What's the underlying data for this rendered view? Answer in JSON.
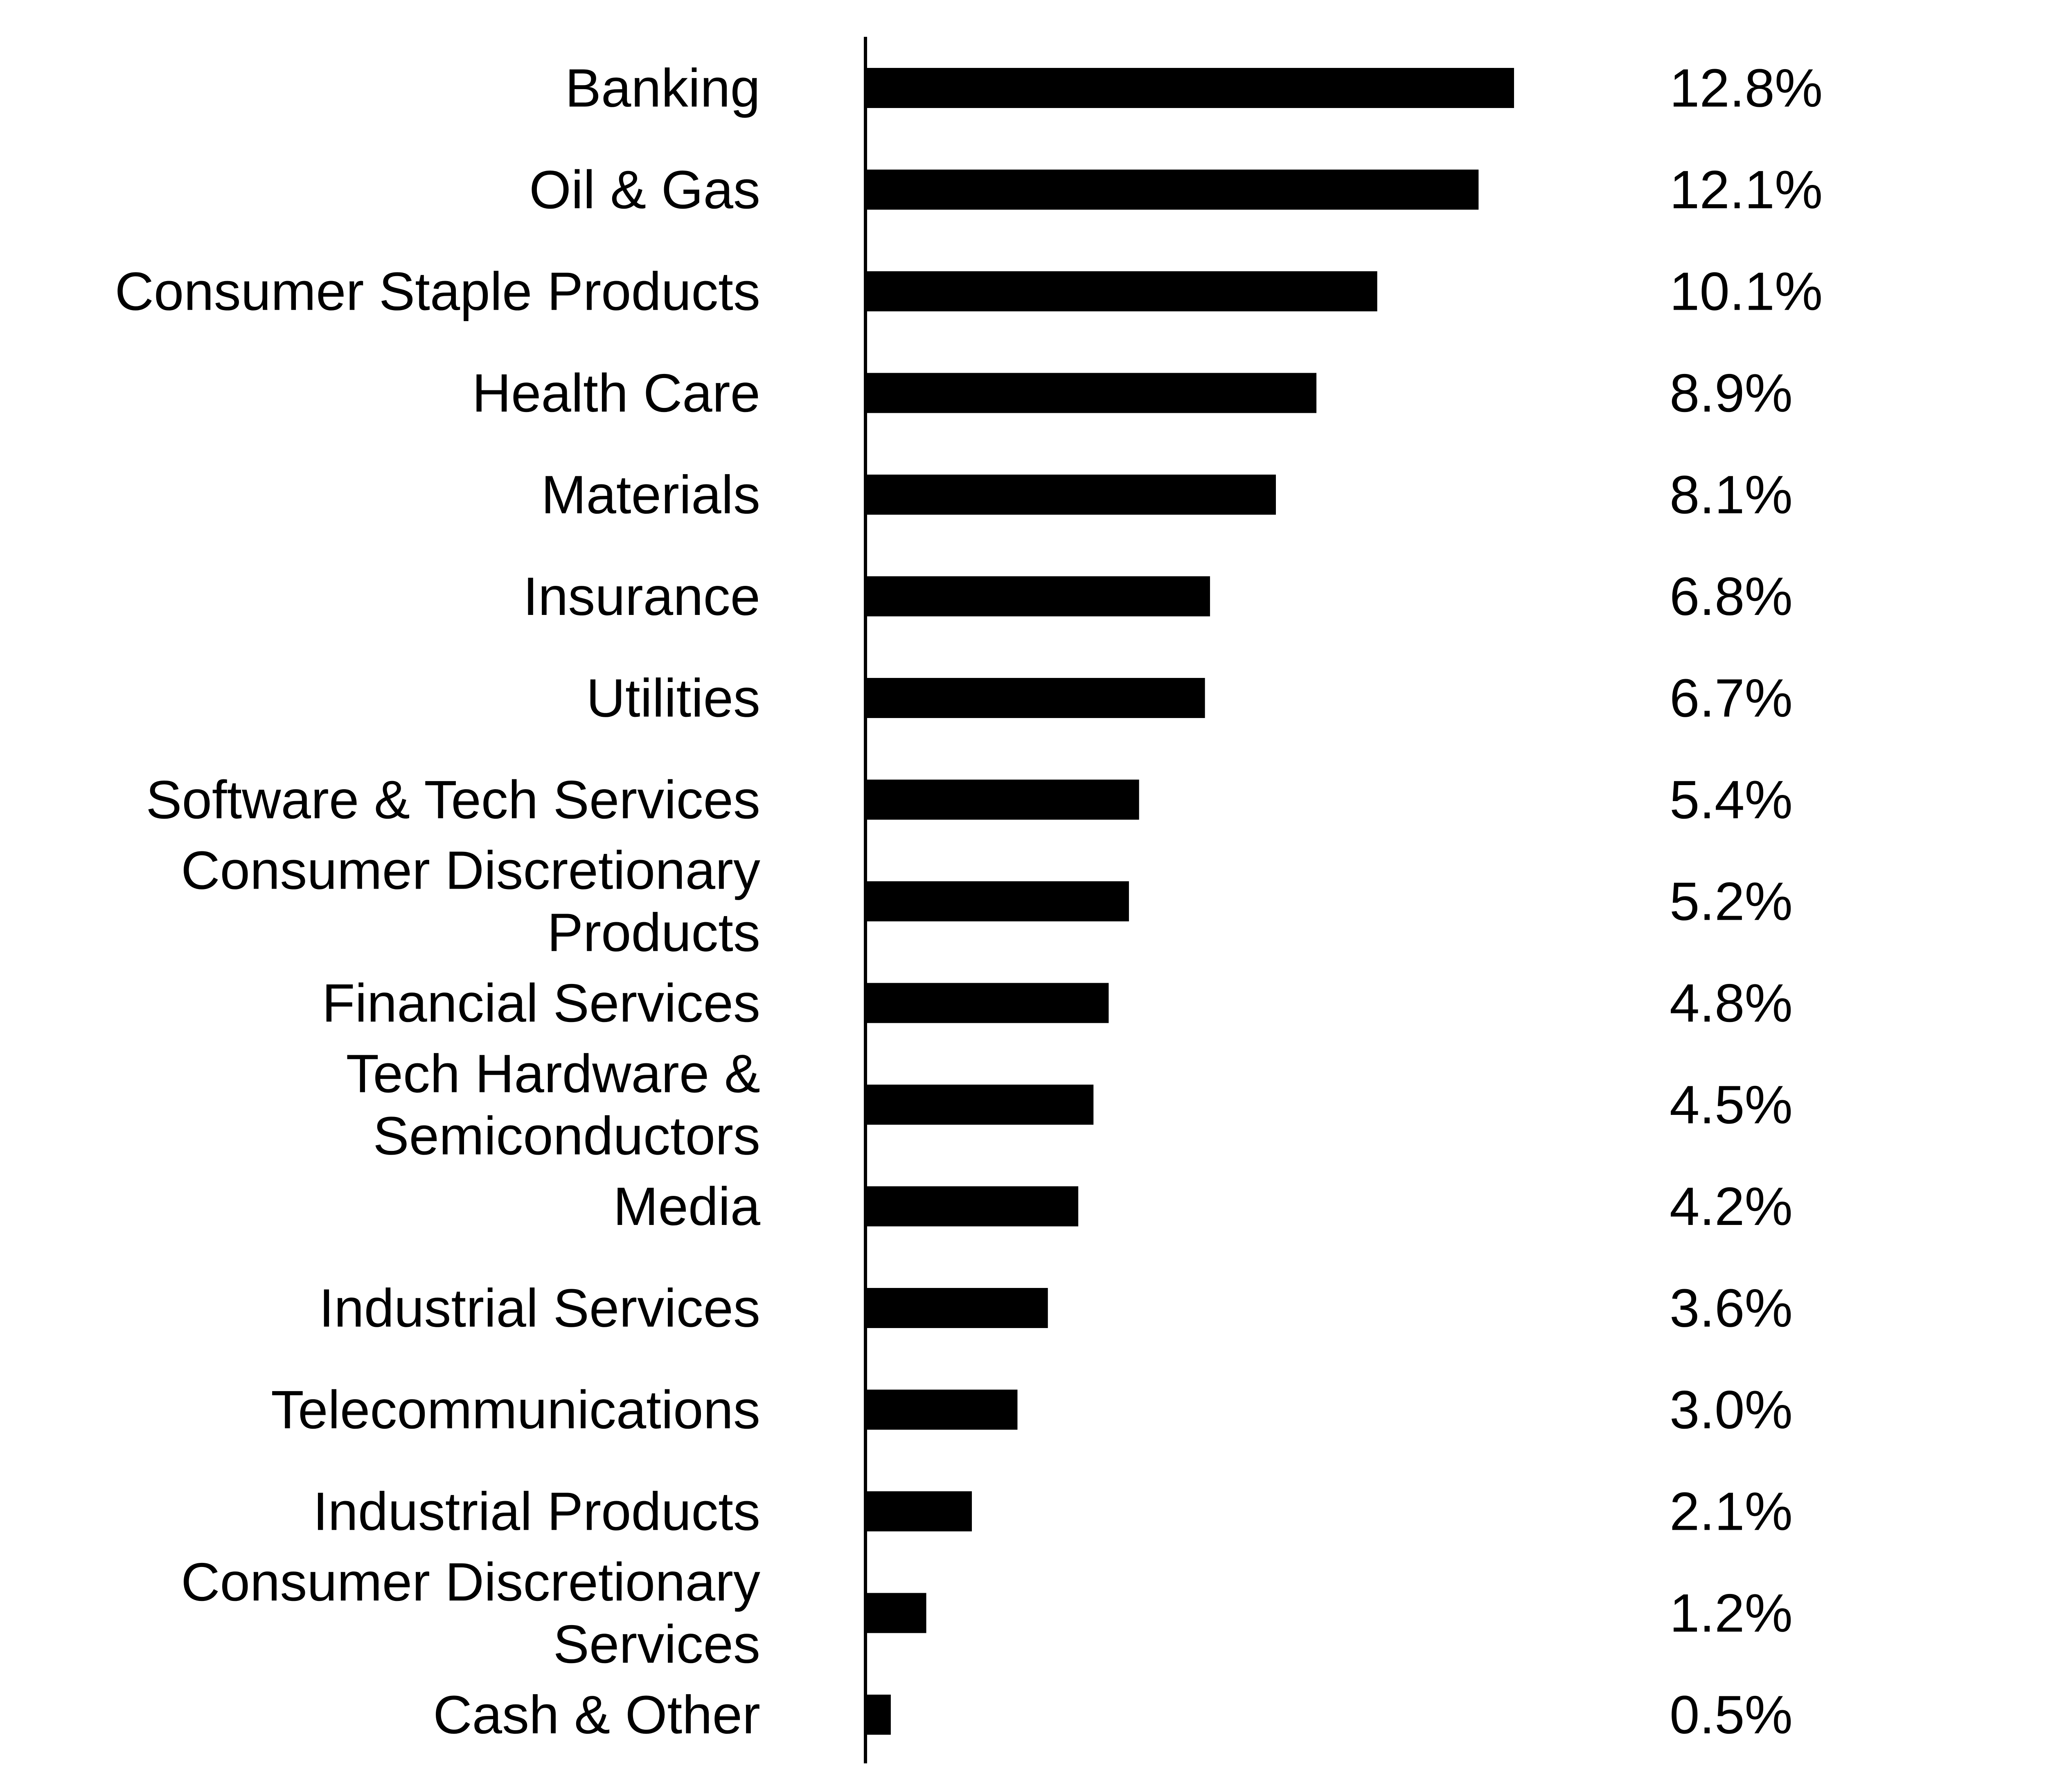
{
  "chart_data": {
    "type": "bar",
    "orientation": "horizontal",
    "title": "",
    "xlabel": "",
    "ylabel": "",
    "xlim": [
      0,
      12.8
    ],
    "grid": false,
    "legend": "none",
    "bar_color": "#000000",
    "label_color": "#000000",
    "categories": [
      [
        "Banking"
      ],
      [
        "Oil & Gas"
      ],
      [
        "Consumer Staple Products"
      ],
      [
        "Health Care"
      ],
      [
        "Materials"
      ],
      [
        "Insurance"
      ],
      [
        "Utilities"
      ],
      [
        "Software & Tech Services"
      ],
      [
        "Consumer Discretionary",
        "Products"
      ],
      [
        "Financial Services"
      ],
      [
        "Tech Hardware &",
        "Semiconductors"
      ],
      [
        "Media"
      ],
      [
        "Industrial Services"
      ],
      [
        "Telecommunications"
      ],
      [
        "Industrial Products"
      ],
      [
        "Consumer Discretionary",
        "Services"
      ],
      [
        "Cash & Other"
      ]
    ],
    "values": [
      12.8,
      12.1,
      10.1,
      8.9,
      8.1,
      6.8,
      6.7,
      5.4,
      5.2,
      4.8,
      4.5,
      4.2,
      3.6,
      3.0,
      2.1,
      1.2,
      0.5
    ],
    "value_labels": [
      "12.8%",
      "12.1%",
      "10.1%",
      "8.9%",
      "8.1%",
      "6.8%",
      "6.7%",
      "5.4%",
      "5.2%",
      "4.8%",
      "4.5%",
      "4.2%",
      "3.6%",
      "3.0%",
      "2.1%",
      "1.2%",
      "0.5%"
    ]
  }
}
